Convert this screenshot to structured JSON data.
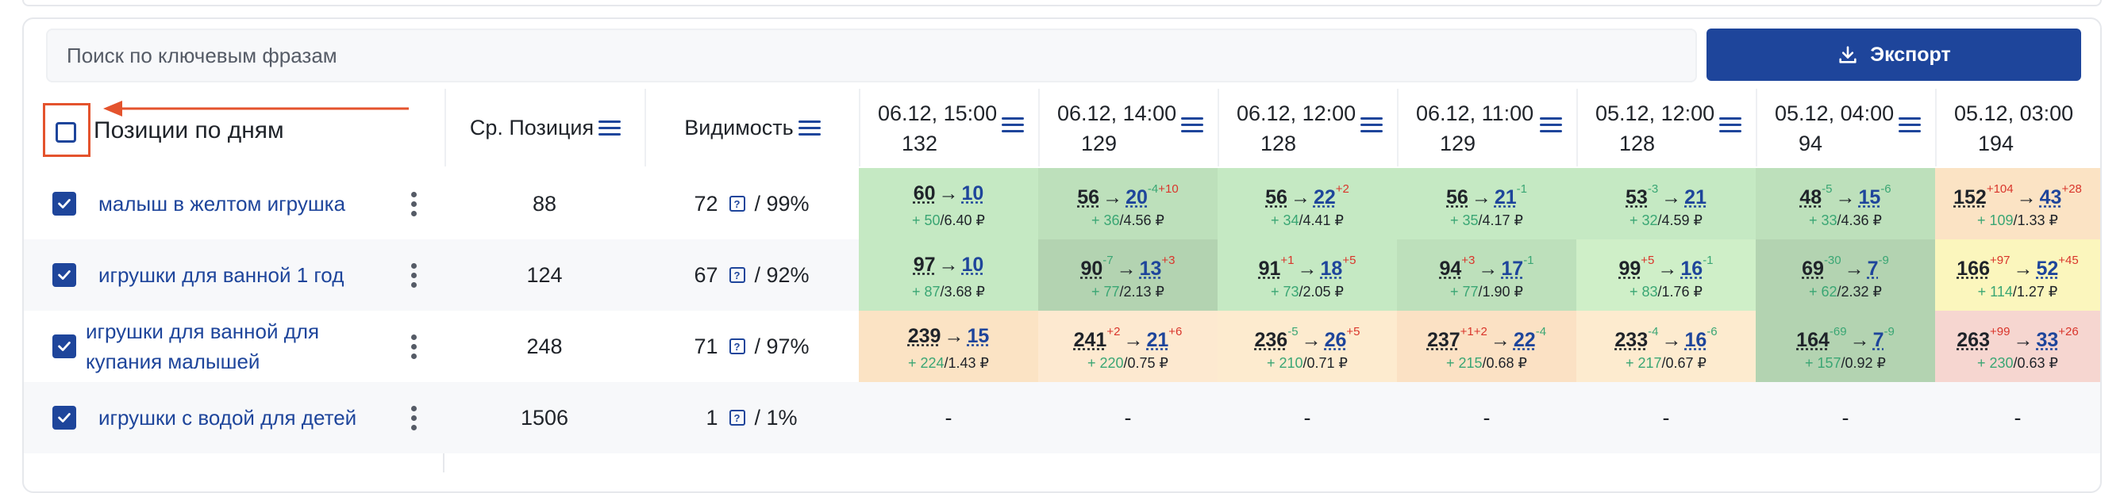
{
  "search": {
    "placeholder": "Поиск по ключевым фразам"
  },
  "export_button": {
    "label": "Экспорт"
  },
  "header": {
    "title": "Позиции по дням",
    "avg_position": "Ср. Позиция",
    "visibility": "Видимость",
    "dates": [
      {
        "date": "06.12, 15:00",
        "count": "132"
      },
      {
        "date": "06.12, 14:00",
        "count": "129"
      },
      {
        "date": "06.12, 12:00",
        "count": "128"
      },
      {
        "date": "06.12, 11:00",
        "count": "129"
      },
      {
        "date": "05.12, 12:00",
        "count": "128"
      },
      {
        "date": "05.12, 04:00",
        "count": "94"
      },
      {
        "date": "05.12, 03:00",
        "count": "194"
      }
    ]
  },
  "rows": [
    {
      "keyword": "малыш в желтом игрушка",
      "avg_position": "88",
      "visibility": "72",
      "visibility_pct": "/ 99%",
      "cells": [
        {
          "from": "60",
          "to": "10",
          "fs": "",
          "ts": "",
          "fsc": "",
          "tsc": "",
          "gain": "+ 50",
          "cpc": "/6.40 ₽",
          "bg": "#c5e9c3"
        },
        {
          "from": "56",
          "to": "20",
          "fs": "",
          "ts": "-4",
          "fsc": "",
          "tsc": "g",
          "ts2": "+10",
          "gain": "+ 36",
          "cpc": "/4.56 ₽",
          "bg": "#bde0bb"
        },
        {
          "from": "56",
          "to": "22",
          "fs": "",
          "ts": "+2",
          "fsc": "",
          "tsc": "r",
          "gain": "+ 34",
          "cpc": "/4.41 ₽",
          "bg": "#c5e9c3"
        },
        {
          "from": "56",
          "to": "21",
          "fs": "",
          "ts": "-1",
          "fsc": "",
          "tsc": "g",
          "gain": "+ 35",
          "cpc": "/4.17 ₽",
          "bg": "#c5e9c3"
        },
        {
          "from": "53",
          "to": "21",
          "fs": "-3",
          "ts": "",
          "fsc": "g",
          "tsc": "",
          "gain": "+ 32",
          "cpc": "/4.59 ₽",
          "bg": "#c5e9c3"
        },
        {
          "from": "48",
          "to": "15",
          "fs": "-5",
          "ts": "-6",
          "fsc": "g",
          "tsc": "g",
          "gain": "+ 33",
          "cpc": "/4.36 ₽",
          "bg": "#bde0bb"
        },
        {
          "from": "152",
          "to": "43",
          "fs": "+104",
          "ts": "+28",
          "fsc": "r",
          "tsc": "r",
          "gain": "+ 109",
          "cpc": "/1.33 ₽",
          "bg": "#fbe3c4"
        }
      ]
    },
    {
      "keyword": "игрушки для ванной 1 год",
      "avg_position": "124",
      "visibility": "67",
      "visibility_pct": "/ 92%",
      "cells": [
        {
          "from": "97",
          "to": "10",
          "fs": "",
          "ts": "",
          "fsc": "",
          "tsc": "",
          "gain": "+ 87",
          "cpc": "/3.68 ₽",
          "bg": "#c5e9c3"
        },
        {
          "from": "90",
          "to": "13",
          "fs": "-7",
          "ts": "+3",
          "fsc": "g",
          "tsc": "r",
          "gain": "+ 77",
          "cpc": "/2.13 ₽",
          "bg": "#b3d3b1"
        },
        {
          "from": "91",
          "to": "18",
          "fs": "+1",
          "ts": "+5",
          "fsc": "r",
          "tsc": "r",
          "gain": "+ 73",
          "cpc": "/2.05 ₽",
          "bg": "#c5e9c3"
        },
        {
          "from": "94",
          "to": "17",
          "fs": "+3",
          "ts": "-1",
          "fsc": "r",
          "tsc": "g",
          "gain": "+ 77",
          "cpc": "/1.90 ₽",
          "bg": "#bde0bb"
        },
        {
          "from": "99",
          "to": "16",
          "fs": "+5",
          "ts": "-1",
          "fsc": "r",
          "tsc": "g",
          "gain": "+ 83",
          "cpc": "/1.76 ₽",
          "bg": "#cfefc8"
        },
        {
          "from": "69",
          "to": "7",
          "fs": "-30",
          "ts": "-9",
          "fsc": "g",
          "tsc": "g",
          "gain": "+ 62",
          "cpc": "/2.32 ₽",
          "bg": "#b3d3b1"
        },
        {
          "from": "166",
          "to": "52",
          "fs": "+97",
          "ts": "+45",
          "fsc": "r",
          "tsc": "r",
          "gain": "+ 114",
          "cpc": "/1.27 ₽",
          "bg": "#fbf6bd"
        }
      ]
    },
    {
      "keyword": "игрушки для ванной для купания малышей",
      "avg_position": "248",
      "visibility": "71",
      "visibility_pct": "/ 97%",
      "cells": [
        {
          "from": "239",
          "to": "15",
          "fs": "",
          "ts": "",
          "fsc": "",
          "tsc": "",
          "gain": "+ 224",
          "cpc": "/1.43 ₽",
          "bg": "#fbe3c4"
        },
        {
          "from": "241",
          "to": "21",
          "fs": "+2",
          "ts": "+6",
          "fsc": "r",
          "tsc": "r",
          "gain": "+ 220",
          "cpc": "/0.75 ₽",
          "bg": "#fde9d0"
        },
        {
          "from": "236",
          "to": "26",
          "fs": "-5",
          "ts": "+5",
          "fsc": "g",
          "tsc": "r",
          "gain": "+ 210",
          "cpc": "/0.71 ₽",
          "bg": "#fdebcf"
        },
        {
          "from": "237",
          "to": "22",
          "fs": "+1",
          "ts": "-4",
          "fsc": "r",
          "tsc": "g",
          "fs2": "+2",
          "gain": "+ 215",
          "cpc": "/0.68 ₽",
          "bg": "#fbe1c4"
        },
        {
          "from": "233",
          "to": "16",
          "fs": "-4",
          "ts": "-6",
          "fsc": "g",
          "tsc": "g",
          "gain": "+ 217",
          "cpc": "/0.67 ₽",
          "bg": "#fdebcf"
        },
        {
          "from": "164",
          "to": "7",
          "fs": "-69",
          "ts": "-9",
          "fsc": "g",
          "tsc": "g",
          "gain": "+ 157",
          "cpc": "/0.92 ₽",
          "bg": "#b3d3b1"
        },
        {
          "from": "263",
          "to": "33",
          "fs": "+99",
          "ts": "+26",
          "fsc": "r",
          "tsc": "r",
          "gain": "+ 230",
          "cpc": "/0.63 ₽",
          "bg": "#f6d6d0"
        }
      ]
    },
    {
      "keyword": "игрушки с водой для детей",
      "avg_position": "1506",
      "visibility": "1",
      "visibility_pct": "/ 1%",
      "cells": [
        {
          "dash": "-"
        },
        {
          "dash": "-"
        },
        {
          "dash": "-"
        },
        {
          "dash": "-"
        },
        {
          "dash": "-"
        },
        {
          "dash": "-"
        },
        {
          "dash": "-"
        }
      ]
    }
  ]
}
